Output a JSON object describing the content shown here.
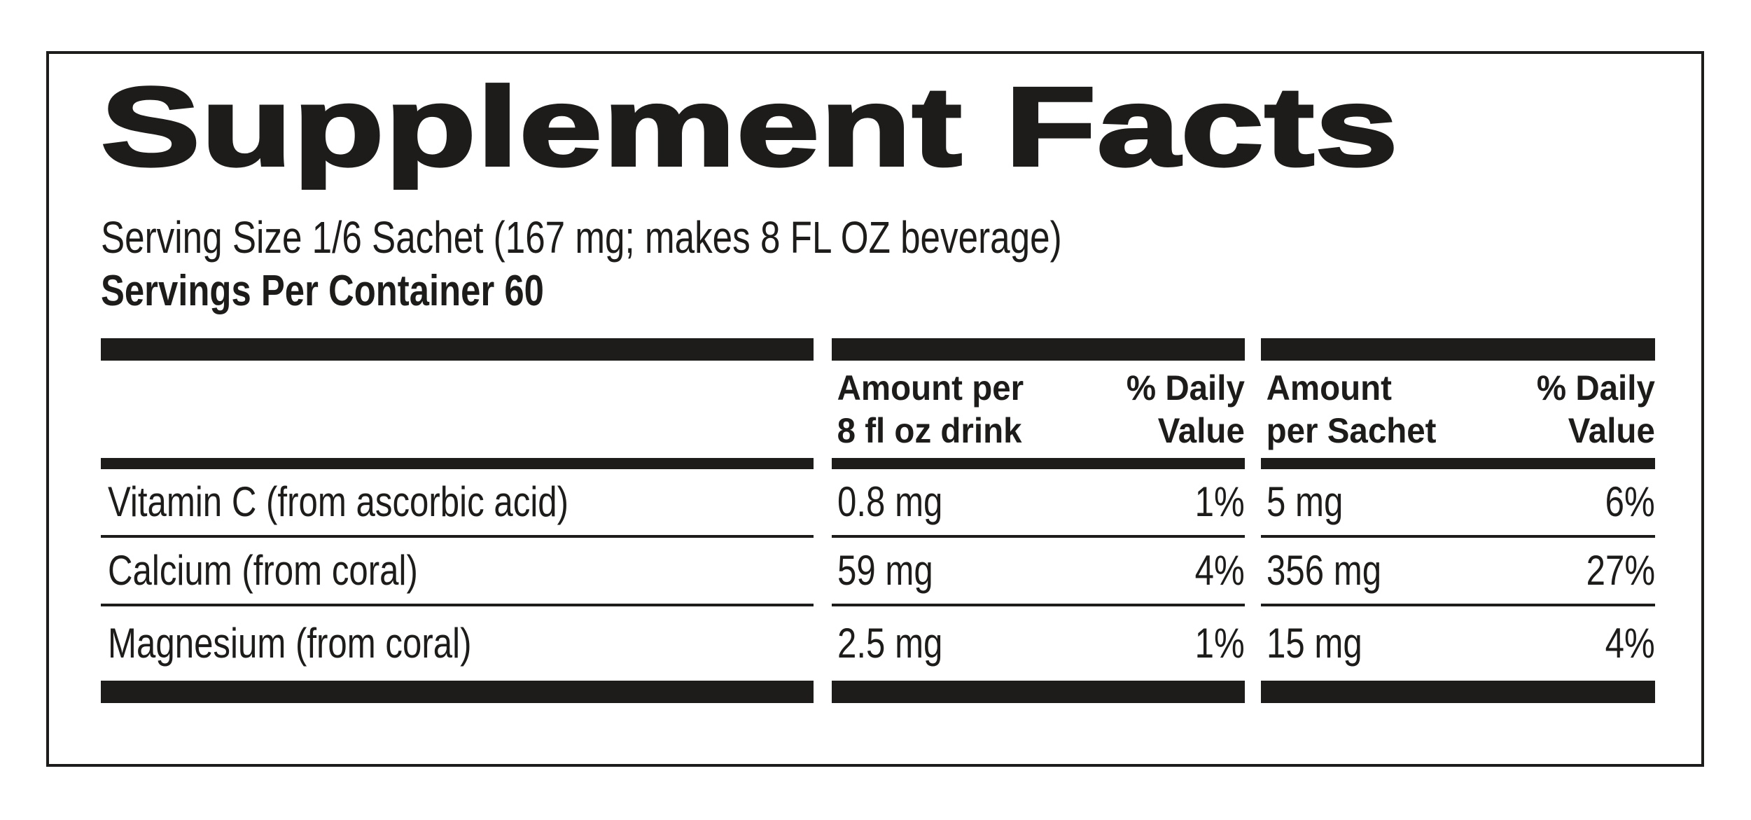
{
  "label": {
    "title": "Supplement Facts",
    "serving_size_line": "Serving Size 1/6 Sachet (167 mg; makes 8 FL OZ beverage)",
    "servings_per_container_line": "Servings Per Container 60"
  },
  "table": {
    "headers": {
      "amount_per_drink_line1": "Amount per",
      "amount_per_drink_line2": "8 fl oz drink",
      "dv_drink_line1": "% Daily",
      "dv_drink_line2": "Value",
      "amount_per_sachet_line1": "Amount",
      "amount_per_sachet_line2": "per Sachet",
      "dv_sachet_line1": "% Daily",
      "dv_sachet_line2": "Value"
    },
    "rows": [
      {
        "name": "Vitamin C (from ascorbic acid)",
        "amount_per_drink": "0.8 mg",
        "dv_drink": "1%",
        "amount_per_sachet": "5 mg",
        "dv_sachet": "6%"
      },
      {
        "name": "Calcium (from coral)",
        "amount_per_drink": "59 mg",
        "dv_drink": "4%",
        "amount_per_sachet": "356 mg",
        "dv_sachet": "27%"
      },
      {
        "name": "Magnesium (from coral)",
        "amount_per_drink": "2.5 mg",
        "dv_drink": "1%",
        "amount_per_sachet": "15 mg",
        "dv_sachet": "4%"
      }
    ]
  },
  "colors": {
    "ink": "#1d1c1a",
    "background": "#ffffff"
  }
}
